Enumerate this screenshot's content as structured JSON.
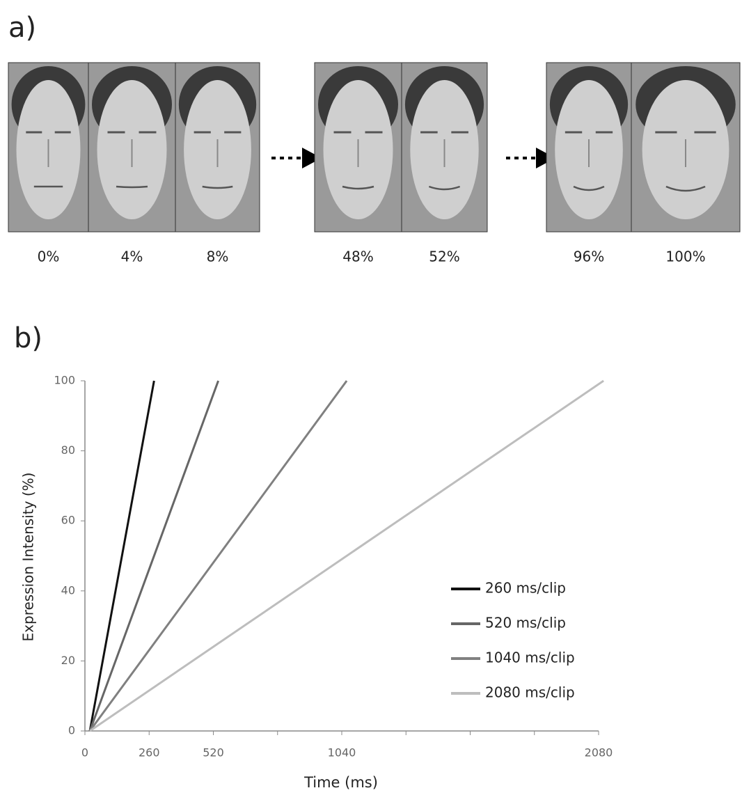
{
  "panel_a": {
    "label": "a)",
    "frames": [
      "0%",
      "4%",
      "8%",
      "48%",
      "52%",
      "96%",
      "100%"
    ]
  },
  "panel_b": {
    "label": "b)"
  },
  "chart_data": {
    "type": "line",
    "x_label": "Time (ms)",
    "y_label": "Expression Intensity (%)",
    "xlim": [
      0,
      2080
    ],
    "ylim": [
      0,
      100
    ],
    "xticks": [
      0,
      260,
      520,
      {
        "value": 780,
        "label": null
      },
      1040,
      {
        "value": 1300,
        "label": null
      },
      {
        "value": 1560,
        "label": null
      },
      {
        "value": 1820,
        "label": null
      },
      2080
    ],
    "yticks": [
      0,
      20,
      40,
      60,
      80,
      100
    ],
    "series": [
      {
        "name": "260 ms/clip",
        "color": "#111111",
        "x": [
          20,
          280
        ],
        "values": [
          0,
          100
        ]
      },
      {
        "name": "520 ms/clip",
        "color": "#666666",
        "x": [
          20,
          540
        ],
        "values": [
          0,
          100
        ]
      },
      {
        "name": "1040 ms/clip",
        "color": "#808080",
        "x": [
          20,
          1060
        ],
        "values": [
          0,
          100
        ]
      },
      {
        "name": "2080 ms/clip",
        "color": "#bdbdbd",
        "x": [
          20,
          2100
        ],
        "values": [
          0,
          100
        ]
      }
    ]
  }
}
